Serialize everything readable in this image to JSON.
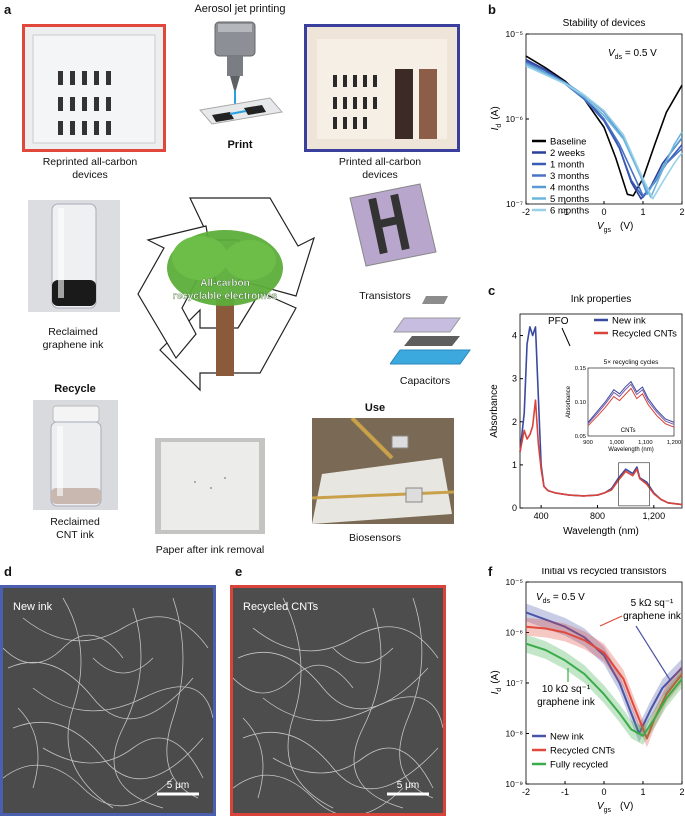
{
  "panel_labels": {
    "a": "a",
    "b": "b",
    "c": "c",
    "d": "d",
    "e": "e",
    "f": "f"
  },
  "panel_a": {
    "aerosol_title": "Aerosol jet printing",
    "print_label": "Print",
    "reprinted_caption_1": "Reprinted all-carbon",
    "reprinted_caption_2": "devices",
    "printed_caption_1": "Printed all-carbon",
    "printed_caption_2": "devices",
    "graphene_caption_1": "Reclaimed",
    "graphene_caption_2": "graphene ink",
    "recycle_label": "Recycle",
    "cnt_caption_1": "Reclaimed",
    "cnt_caption_2": "CNT ink",
    "paper_caption": "Paper after ink removal",
    "center_label_1": "All-carbon",
    "center_label_2": "recyclable electronics",
    "transistors_label": "Transistors",
    "capacitors_label": "Capacitors",
    "use_label": "Use",
    "biosensors_label": "Biosensors",
    "colors": {
      "red_frame": "#e0483c",
      "blue_frame": "#3a3f9e",
      "tree_green": "#5cae3a",
      "trunk": "#8a5a3a"
    }
  },
  "panel_d": {
    "label": "New ink",
    "scalebar": "5 μm",
    "frame_color": "#4a5fae"
  },
  "panel_e": {
    "label": "Recycled CNTs",
    "scalebar": "5 μm",
    "frame_color": "#d9433a"
  },
  "chart_data": [
    {
      "id": "b",
      "type": "line",
      "title": "Stability of devices",
      "annotation": "V_ds = 0.5 V",
      "xlabel": "V_gs (V)",
      "ylabel": "I_d (A)",
      "xlim": [
        -2,
        2
      ],
      "ylim": [
        1e-07,
        1e-05
      ],
      "yscale": "log",
      "xticks": [
        "-2",
        "-1",
        "0",
        "1",
        "2"
      ],
      "yticks": [
        "10⁻⁷",
        "10⁻⁶",
        "10⁻⁵"
      ],
      "legend_position": "bottom-left",
      "series": [
        {
          "name": "Baseline",
          "color": "#000000",
          "x": [
            -2,
            -1.5,
            -1,
            -0.5,
            0,
            0.3,
            0.6,
            0.75,
            1,
            1.3,
            1.6,
            2
          ],
          "y": [
            5.5e-06,
            4e-06,
            2.8e-06,
            1.7e-06,
            8e-07,
            3.5e-07,
            1.3e-07,
            1.25e-07,
            2e-07,
            5e-07,
            1.2e-06,
            2.5e-06
          ]
        },
        {
          "name": "2 weeks",
          "color": "#2a3f9a",
          "x": [
            -2,
            -1.5,
            -1,
            -0.5,
            0,
            0.4,
            0.7,
            0.95,
            1.2,
            1.5,
            2
          ],
          "y": [
            5e-06,
            3.8e-06,
            2.7e-06,
            1.8e-06,
            1e-06,
            4.5e-07,
            1.8e-07,
            1.15e-07,
            1.6e-07,
            3e-07,
            6e-07
          ]
        },
        {
          "name": "1 month",
          "color": "#3a5bb5",
          "x": [
            -2,
            -1.5,
            -1,
            -0.5,
            0,
            0.4,
            0.7,
            1,
            1.3,
            1.6,
            2
          ],
          "y": [
            4.8e-06,
            3.7e-06,
            2.6e-06,
            1.7e-06,
            9.5e-07,
            4.5e-07,
            1.9e-07,
            1.2e-07,
            1.8e-07,
            3e-07,
            5e-07
          ]
        },
        {
          "name": "3 months",
          "color": "#4a72c4",
          "x": [
            -2,
            -1.5,
            -1,
            -0.5,
            0,
            0.4,
            0.8,
            1,
            1.3,
            1.6,
            2
          ],
          "y": [
            4.6e-06,
            3.5e-06,
            2.6e-06,
            1.7e-06,
            1e-06,
            5e-07,
            2e-07,
            1.25e-07,
            1.8e-07,
            3e-07,
            4.5e-07
          ]
        },
        {
          "name": "4 months",
          "color": "#5a9ad2",
          "x": [
            -2,
            -1.5,
            -1,
            -0.5,
            0,
            0.5,
            0.9,
            1.1,
            1.4,
            1.7,
            2
          ],
          "y": [
            4.5e-06,
            3.5e-06,
            2.7e-06,
            1.9e-06,
            1.2e-06,
            6e-07,
            2.4e-07,
            1.3e-07,
            2.2e-07,
            4e-07,
            6e-07
          ]
        },
        {
          "name": "5 months",
          "color": "#6cb6dc",
          "x": [
            -2,
            -1.5,
            -1,
            -0.5,
            0,
            0.5,
            0.9,
            1.2,
            1.5,
            1.8,
            2
          ],
          "y": [
            4.4e-06,
            3.4e-06,
            2.6e-06,
            1.8e-06,
            1.1e-06,
            5.8e-07,
            2.3e-07,
            1.2e-07,
            2.5e-07,
            5e-07,
            7e-07
          ]
        },
        {
          "name": "6 months",
          "color": "#9ad0e8",
          "x": [
            -2,
            -1.5,
            -1,
            -0.5,
            0,
            0.5,
            0.9,
            1.25,
            1.5,
            1.8,
            2
          ],
          "y": [
            4.2e-06,
            3.3e-06,
            2.6e-06,
            1.9e-06,
            1.25e-06,
            6.5e-07,
            2.5e-07,
            1.15e-07,
            1.8e-07,
            3e-07,
            4e-07
          ]
        }
      ]
    },
    {
      "id": "c",
      "type": "line",
      "title": "Ink properties",
      "xlabel": "Wavelength (nm)",
      "ylabel": "Absorbance",
      "xlim": [
        250,
        1400
      ],
      "ylim": [
        0,
        4.5
      ],
      "xticks": [
        "400",
        "800",
        "1,200"
      ],
      "yticks": [
        "0",
        "1",
        "2",
        "3",
        "4"
      ],
      "annotation": "PFO",
      "legend_position": "top-right",
      "series": [
        {
          "name": "New ink",
          "color": "#3a4aa0",
          "x": [
            250,
            280,
            300,
            320,
            340,
            360,
            380,
            400,
            420,
            450,
            500,
            600,
            700,
            800,
            850,
            900,
            950,
            1000,
            1050,
            1080,
            1100,
            1150,
            1200,
            1250,
            1300,
            1400
          ],
          "y": [
            1.3,
            2.2,
            3.8,
            4.2,
            4.0,
            4.2,
            2.6,
            1.0,
            0.5,
            0.4,
            0.35,
            0.3,
            0.28,
            0.3,
            0.35,
            0.45,
            0.7,
            0.9,
            0.8,
            0.95,
            0.7,
            0.6,
            0.35,
            0.2,
            0.12,
            0.08
          ]
        },
        {
          "name": "Recycled CNTs",
          "color": "#d9433a",
          "x": [
            250,
            280,
            300,
            320,
            340,
            360,
            380,
            400,
            420,
            450,
            500,
            600,
            700,
            800,
            850,
            900,
            950,
            1000,
            1050,
            1080,
            1100,
            1150,
            1200,
            1250,
            1300,
            1400
          ],
          "y": [
            1.3,
            1.8,
            1.6,
            1.7,
            1.9,
            2.5,
            1.5,
            0.9,
            0.5,
            0.4,
            0.35,
            0.3,
            0.28,
            0.3,
            0.35,
            0.42,
            0.65,
            0.85,
            0.75,
            0.9,
            0.68,
            0.55,
            0.33,
            0.2,
            0.12,
            0.08
          ]
        }
      ],
      "inset": {
        "title": "5× recycling cycles",
        "xlabel": "Wavelength (nm)",
        "ylabel": "Absorbance",
        "annotation": "CNTs",
        "xlim": [
          900,
          1200
        ],
        "ylim": [
          0.05,
          0.15
        ],
        "xticks": [
          "900",
          "1,000",
          "1,100",
          "1,200"
        ],
        "yticks": [
          "0.05",
          "0.10",
          "0.15"
        ],
        "series": [
          {
            "name": "",
            "color": "#3a4aa0",
            "x": [
              900,
              930,
              960,
              990,
              1010,
              1030,
              1050,
              1070,
              1090,
              1110,
              1140,
              1170,
              1200
            ],
            "y": [
              0.07,
              0.085,
              0.1,
              0.118,
              0.112,
              0.122,
              0.13,
              0.115,
              0.122,
              0.105,
              0.088,
              0.075,
              0.07
            ]
          },
          {
            "name": "",
            "color": "#7a5aa8",
            "x": [
              900,
              930,
              960,
              990,
              1010,
              1030,
              1050,
              1070,
              1090,
              1110,
              1140,
              1170,
              1200
            ],
            "y": [
              0.068,
              0.082,
              0.097,
              0.114,
              0.108,
              0.118,
              0.126,
              0.111,
              0.118,
              0.101,
              0.085,
              0.072,
              0.067
            ]
          },
          {
            "name": "",
            "color": "#d9433a",
            "x": [
              900,
              930,
              960,
              990,
              1010,
              1030,
              1050,
              1070,
              1090,
              1110,
              1140,
              1170,
              1200
            ],
            "y": [
              0.065,
              0.078,
              0.092,
              0.108,
              0.102,
              0.111,
              0.12,
              0.105,
              0.112,
              0.096,
              0.08,
              0.068,
              0.063
            ]
          }
        ]
      }
    },
    {
      "id": "f",
      "type": "line",
      "title": "Initial vs recycled transistors",
      "annotation": "V_ds = 0.5 V",
      "xlabel": "V_gs (V)",
      "ylabel": "I_d (A)",
      "xlim": [
        -2,
        2
      ],
      "ylim": [
        1e-09,
        1e-05
      ],
      "yscale": "log",
      "xticks": [
        "-2",
        "-1",
        "0",
        "1",
        "2"
      ],
      "yticks": [
        "10⁻⁹",
        "10⁻⁸",
        "10⁻⁷",
        "10⁻⁶",
        "10⁻⁵"
      ],
      "legend_position": "bottom-left",
      "annotations": [
        "5 kΩ sq⁻¹",
        "graphene ink",
        "10 kΩ sq⁻¹",
        "graphene ink"
      ],
      "series": [
        {
          "name": "New ink",
          "color": "#4a55a8",
          "x": [
            -2,
            -1.5,
            -1,
            -0.5,
            0,
            0.4,
            0.7,
            0.9,
            1.2,
            1.5,
            2
          ],
          "y": [
            2.5e-06,
            1.8e-06,
            1.3e-06,
            8e-07,
            3.5e-07,
            1e-07,
            2.5e-08,
            1e-08,
            3e-08,
            8e-08,
            2e-07
          ]
        },
        {
          "name": "Recycled CNTs",
          "color": "#e04a3c",
          "x": [
            -2,
            -1.5,
            -1,
            -0.5,
            0,
            0.5,
            0.8,
            1.1,
            1.3,
            1.6,
            2
          ],
          "y": [
            1.3e-06,
            1.2e-06,
            1e-06,
            7e-07,
            4e-07,
            1.2e-07,
            3e-08,
            8e-09,
            2e-08,
            6e-08,
            1.5e-07
          ]
        },
        {
          "name": "Fully recycled",
          "color": "#3cab4a",
          "x": [
            -2,
            -1.5,
            -1,
            -0.5,
            0,
            0.4,
            0.7,
            1,
            1.3,
            1.6,
            2
          ],
          "y": [
            6e-07,
            4.5e-07,
            2.8e-07,
            1.5e-07,
            6e-08,
            2.5e-08,
            1.2e-08,
            9e-09,
            2e-08,
            5e-08,
            1.2e-07
          ]
        }
      ]
    }
  ]
}
